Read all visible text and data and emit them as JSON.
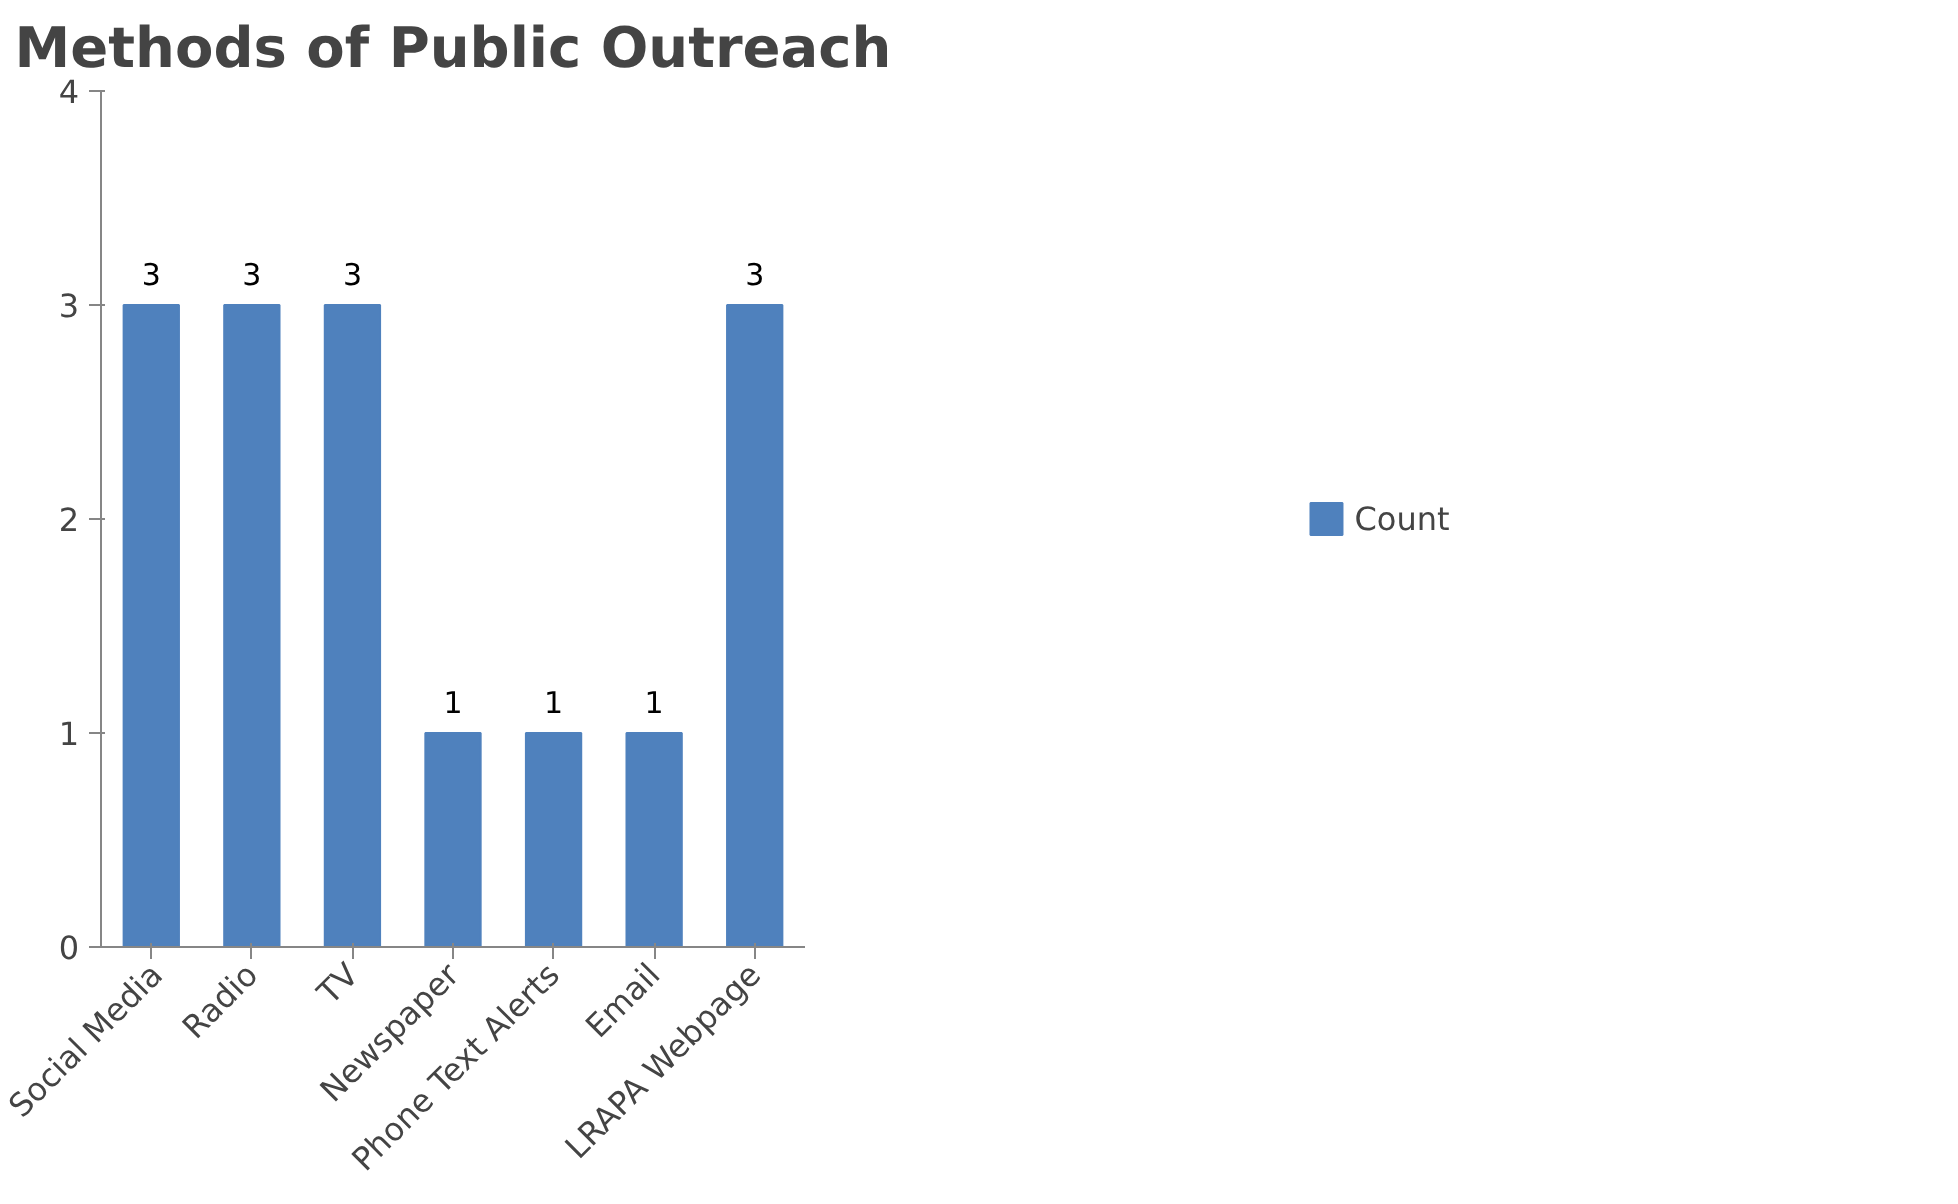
{
  "chart_data": {
    "type": "bar",
    "title": "Methods of Public Outreach",
    "categories": [
      "Social Media",
      "Radio",
      "TV",
      "Newspaper",
      "Phone Text Alerts",
      "Email",
      "LRAPA Webpage"
    ],
    "series": [
      {
        "name": "Count",
        "color": "#4f81bd",
        "values": [
          3,
          3,
          3,
          1,
          1,
          1,
          3
        ]
      }
    ],
    "ylim": [
      0,
      4
    ],
    "yticks": [
      0,
      1,
      2,
      3,
      4
    ],
    "grid": false,
    "legend": "right",
    "data_labels": true
  }
}
